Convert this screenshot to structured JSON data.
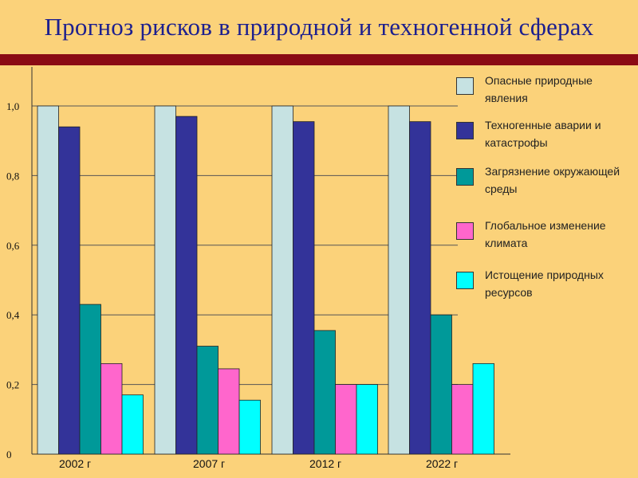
{
  "chart_data": {
    "type": "bar",
    "title": "Прогноз рисков в природной и техногенной сферах",
    "categories": [
      "2002 г",
      "2007 г",
      "2012 г",
      "2022 г"
    ],
    "series": [
      {
        "name": "Опасные природные явления",
        "color": "#c6e2e2",
        "values": [
          1.0,
          1.0,
          1.0,
          1.0
        ]
      },
      {
        "name": "Техногенные аварии и катастрофы",
        "color": "#333399",
        "values": [
          0.94,
          0.97,
          0.955,
          0.955
        ]
      },
      {
        "name": "Загрязнение окружающей среды",
        "color": "#009999",
        "values": [
          0.43,
          0.31,
          0.355,
          0.4
        ]
      },
      {
        "name": "Глобальное изменение климата",
        "color": "#ff66cc",
        "values": [
          0.26,
          0.245,
          0.2,
          0.2
        ]
      },
      {
        "name": "Истощение природных ресурсов",
        "color": "#00ffff",
        "values": [
          0.17,
          0.155,
          0.2,
          0.26
        ]
      }
    ],
    "yticks": [
      "0",
      "0,2",
      "0,4",
      "0,6",
      "0,8",
      "1,0"
    ],
    "ylim": [
      0,
      1.0
    ],
    "grid": true,
    "legend_position": "right"
  }
}
